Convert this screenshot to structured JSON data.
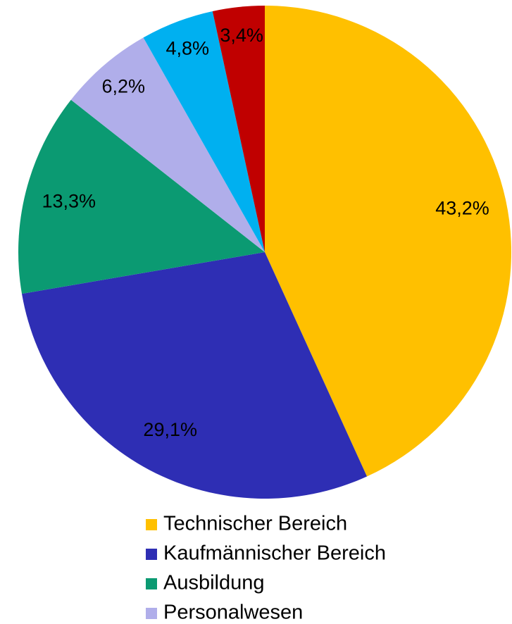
{
  "chart_data": {
    "type": "pie",
    "categories": [
      "Technischer Bereich",
      "Kaufmännischer Bereich",
      "Ausbildung",
      "Personalwesen",
      null,
      null
    ],
    "values": [
      43.2,
      29.1,
      13.3,
      6.2,
      4.8,
      3.4
    ],
    "value_labels": [
      "43,2%",
      "29,1%",
      "13,3%",
      "6,2%",
      "4,8%",
      "3,4%"
    ],
    "colors": [
      "#ffc000",
      "#2e2eb4",
      "#0b9a72",
      "#b0aeea",
      "#00b0f0",
      "#c00000"
    ]
  }
}
